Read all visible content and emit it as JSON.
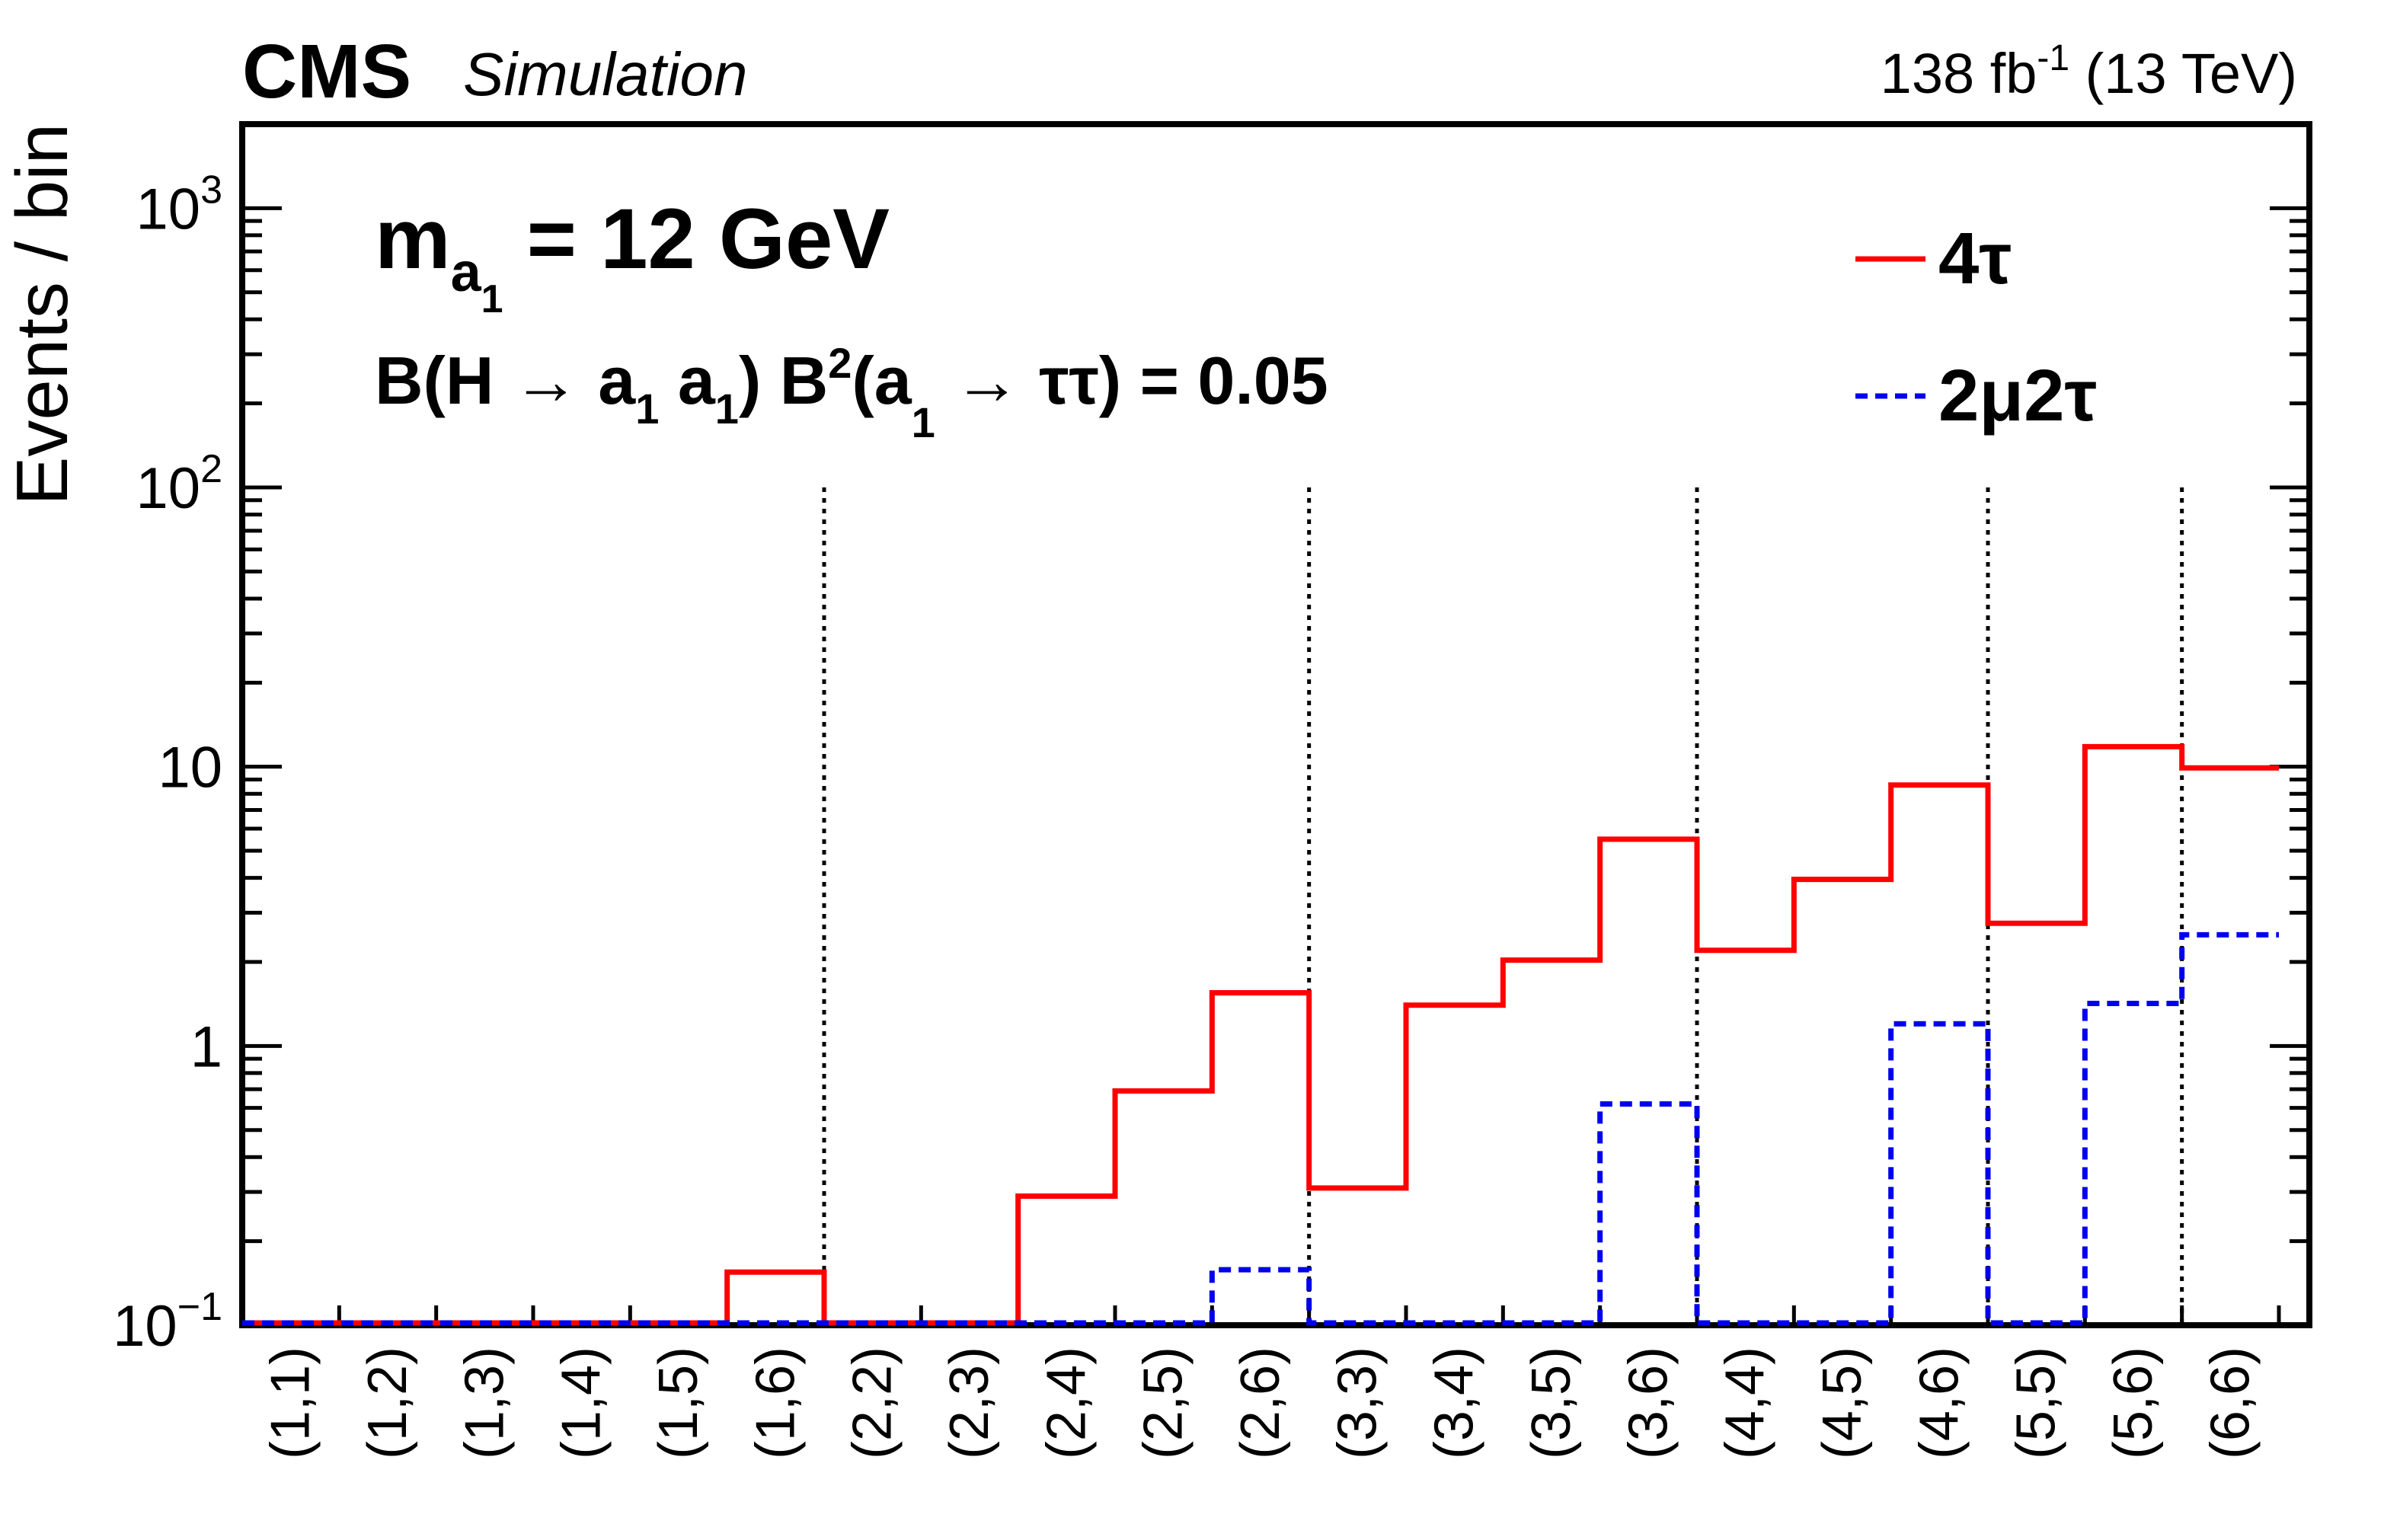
{
  "header": {
    "experiment": "CMS",
    "label": "Simulation",
    "lumi": "138 fb",
    "lumi_exp": "-1",
    "energy": " (13 TeV)"
  },
  "annotations": {
    "mass_m": "m",
    "mass_sub": "a",
    "mass_subsub": "1",
    "mass_value": " = 12 GeV",
    "br_a": "B(H ",
    "br_arrow1": "→",
    "br_b": " a",
    "br_b_sub": "1",
    "br_c": " a",
    "br_c_sub": "1",
    "br_d": ") B",
    "br_d_sup": "2",
    "br_e": "(a",
    "br_e_sub": "1",
    "br_arrow2": "→",
    "br_f": " ττ) = 0.05"
  },
  "colors": {
    "four_tau": "#ff0000",
    "two_mu_two_tau": "#0000ee",
    "separator": "#000000"
  },
  "chart_data": {
    "type": "histogram-step",
    "ylabel": "Events / bin",
    "xlabel": "",
    "yscale": "log",
    "ylim": [
      0.1,
      2000
    ],
    "yticks": [
      {
        "value": 0.1,
        "base": "10",
        "exp": "−1"
      },
      {
        "value": 1,
        "base": "1",
        "exp": ""
      },
      {
        "value": 10,
        "base": "10",
        "exp": ""
      },
      {
        "value": 100,
        "base": "10",
        "exp": "2"
      },
      {
        "value": 1000,
        "base": "10",
        "exp": "3"
      }
    ],
    "categories": [
      "(1,1)",
      "(1,2)",
      "(1,3)",
      "(1,4)",
      "(1,5)",
      "(1,6)",
      "(2,2)",
      "(2,3)",
      "(2,4)",
      "(2,5)",
      "(2,6)",
      "(3,3)",
      "(3,4)",
      "(3,5)",
      "(3,6)",
      "(4,4)",
      "(4,5)",
      "(4,6)",
      "(5,5)",
      "(5,6)",
      "(6,6)"
    ],
    "separators_after": [
      "(1,6)",
      "(2,6)",
      "(3,6)",
      "(4,6)",
      "(5,6)"
    ],
    "series": [
      {
        "name": "4τ",
        "style": "solid",
        "values": [
          0.1,
          0.1,
          0.1,
          0.1,
          0.1,
          0.155,
          0.1,
          0.1,
          0.29,
          0.69,
          1.55,
          0.31,
          1.4,
          2.03,
          5.5,
          2.2,
          3.95,
          8.6,
          2.75,
          11.8,
          9.9
        ]
      },
      {
        "name": "2μ2τ",
        "style": "dashed",
        "values": [
          0.1,
          0.1,
          0.1,
          0.1,
          0.1,
          0.1,
          0.1,
          0.1,
          0.1,
          0.1,
          0.158,
          0.1,
          0.1,
          0.1,
          0.62,
          0.1,
          0.1,
          1.2,
          0.1,
          1.42,
          2.5
        ]
      }
    ],
    "legend": "top-right"
  }
}
